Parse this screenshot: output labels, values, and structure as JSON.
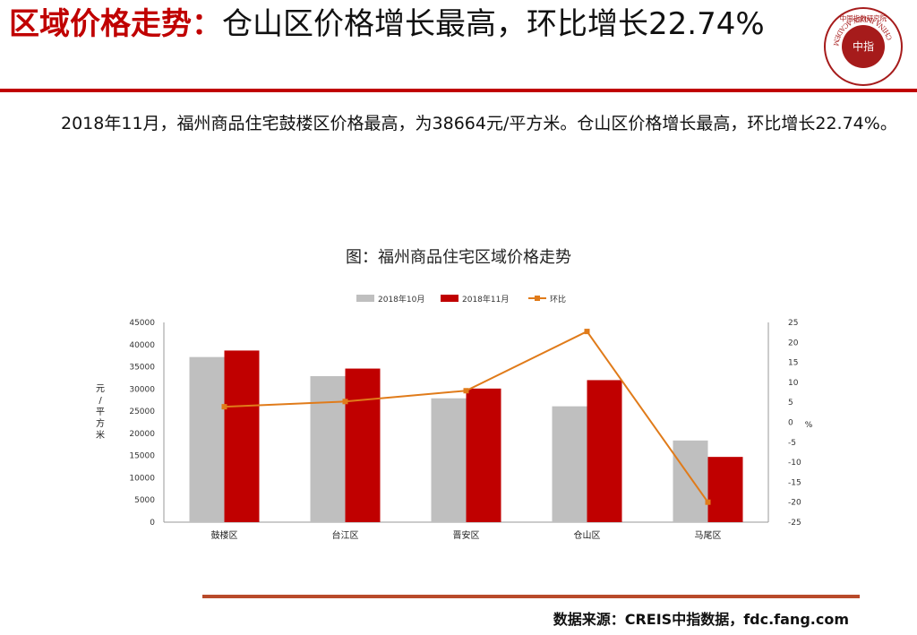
{
  "slide": {
    "title_prefix": "区域价格走势：",
    "title_rest": "仓山区价格增长最高，环比增长22.74%",
    "body": "2018年11月，福州商品住宅鼓楼区价格最高，为38664元/平方米。仓山区价格增长最高，环比增长22.74%。",
    "source": "数据来源：CREIS中指数据，fdc.fang.com",
    "logo_center_text": "中指",
    "logo_ring_text": "CHINA INDEX ACADEMY",
    "logo_top_text": "中国指数研究院"
  },
  "chart_data": {
    "type": "bar",
    "title": "图：福州商品住宅区域价格走势",
    "categories": [
      "鼓楼区",
      "台江区",
      "晋安区",
      "仓山区",
      "马尾区"
    ],
    "series": [
      {
        "name": "2018年10月",
        "kind": "bar",
        "color": "#bfbfbf",
        "values": [
          37200,
          32900,
          27900,
          26100,
          18400
        ]
      },
      {
        "name": "2018年11月",
        "kind": "bar",
        "color": "#c00000",
        "values": [
          38664,
          34600,
          30100,
          32000,
          14700
        ]
      },
      {
        "name": "环比",
        "kind": "line",
        "color": "#e07b1a",
        "axis": "right",
        "values": [
          3.9,
          5.2,
          7.9,
          22.74,
          -20.0
        ]
      }
    ],
    "ylabel": "元/平方米",
    "ylabel_right": "%",
    "ylim": [
      0,
      45000
    ],
    "yticks": [
      "0",
      "5000",
      "10000",
      "15000",
      "20000",
      "25000",
      "30000",
      "35000",
      "40000",
      "45000"
    ],
    "ylim_right": [
      -25,
      25
    ],
    "yticks_right": [
      "-25",
      "-20",
      "-15",
      "-10",
      "-5",
      "0",
      "5",
      "10",
      "15",
      "20",
      "25"
    ],
    "legend": "top",
    "grid": false
  }
}
